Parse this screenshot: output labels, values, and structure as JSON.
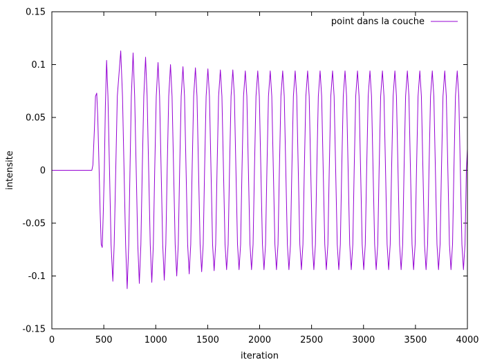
{
  "chart_data": {
    "type": "line",
    "title": "",
    "xlabel": "iteration",
    "ylabel": "intensite",
    "xlim": [
      0,
      4000
    ],
    "ylim": [
      -0.15,
      0.15
    ],
    "x_ticks": [
      {
        "value": 0,
        "label": "0"
      },
      {
        "value": 500,
        "label": "500"
      },
      {
        "value": 1000,
        "label": "1000"
      },
      {
        "value": 1500,
        "label": "1500"
      },
      {
        "value": 2000,
        "label": "2000"
      },
      {
        "value": 2500,
        "label": "2500"
      },
      {
        "value": 3000,
        "label": "3000"
      },
      {
        "value": 3500,
        "label": "3500"
      },
      {
        "value": 4000,
        "label": "4000"
      }
    ],
    "y_ticks": [
      {
        "value": 0.15,
        "label": "0.15"
      },
      {
        "value": 0.1,
        "label": "0.1"
      },
      {
        "value": 0.05,
        "label": "0.05"
      },
      {
        "value": 0,
        "label": "0"
      },
      {
        "value": -0.05,
        "label": "-0.05"
      },
      {
        "value": -0.1,
        "label": "-0.1"
      },
      {
        "value": -0.15,
        "label": "-0.15"
      }
    ],
    "grid": false,
    "legend_position": "top-right",
    "series": [
      {
        "name": "point dans la couche",
        "color": "#9400d3",
        "points": [
          [
            0,
            0
          ],
          [
            385,
            0
          ],
          [
            395,
            0.005
          ],
          [
            410,
            0.04
          ],
          [
            420,
            0.07
          ],
          [
            432,
            0.073
          ],
          [
            442,
            0.05
          ],
          [
            455,
            0.0
          ],
          [
            465,
            -0.04
          ],
          [
            475,
            -0.07
          ],
          [
            485,
            -0.073
          ],
          [
            495,
            -0.04
          ],
          [
            505,
            0.0
          ],
          [
            515,
            0.06
          ],
          [
            527,
            0.104
          ],
          [
            540,
            0.07
          ],
          [
            555,
            0.0
          ],
          [
            570,
            -0.07
          ],
          [
            587,
            -0.105
          ],
          [
            600,
            -0.07
          ],
          [
            615,
            0.0
          ],
          [
            630,
            0.07
          ],
          [
            663,
            0.113
          ],
          [
            680,
            0.07
          ],
          [
            695,
            0.0
          ],
          [
            710,
            -0.07
          ],
          [
            725,
            -0.112
          ],
          [
            740,
            -0.07
          ],
          [
            752,
            0.0
          ],
          [
            765,
            0.07
          ],
          [
            782,
            0.111
          ],
          [
            797,
            0.07
          ],
          [
            812,
            0.0
          ],
          [
            827,
            -0.07
          ],
          [
            842,
            -0.107
          ],
          [
            857,
            -0.07
          ],
          [
            870,
            0.0
          ],
          [
            885,
            0.07
          ],
          [
            902,
            0.107
          ],
          [
            917,
            0.07
          ],
          [
            932,
            0.0
          ],
          [
            947,
            -0.07
          ],
          [
            962,
            -0.106
          ],
          [
            977,
            -0.07
          ],
          [
            990,
            0.0
          ],
          [
            1005,
            0.07
          ],
          [
            1022,
            0.102
          ],
          [
            1037,
            0.07
          ],
          [
            1052,
            0.0
          ],
          [
            1067,
            -0.07
          ],
          [
            1082,
            -0.104
          ],
          [
            1097,
            -0.07
          ],
          [
            1110,
            0.0
          ],
          [
            1125,
            0.07
          ],
          [
            1142,
            0.1
          ],
          [
            1157,
            0.07
          ],
          [
            1172,
            0.0
          ],
          [
            1187,
            -0.07
          ],
          [
            1202,
            -0.1
          ],
          [
            1217,
            -0.07
          ],
          [
            1230,
            0.0
          ],
          [
            1245,
            0.07
          ],
          [
            1262,
            0.098
          ],
          [
            1277,
            0.07
          ],
          [
            1292,
            0.0
          ],
          [
            1307,
            -0.07
          ],
          [
            1322,
            -0.098
          ],
          [
            1337,
            -0.07
          ],
          [
            1350,
            0.0
          ],
          [
            1365,
            0.07
          ],
          [
            1382,
            0.097
          ],
          [
            1397,
            0.07
          ],
          [
            1412,
            0.0
          ],
          [
            1427,
            -0.07
          ],
          [
            1442,
            -0.096
          ],
          [
            1457,
            -0.07
          ],
          [
            1470,
            0.0
          ],
          [
            1485,
            0.07
          ],
          [
            1502,
            0.096
          ],
          [
            1517,
            0.07
          ],
          [
            1532,
            0.0
          ],
          [
            1547,
            -0.07
          ],
          [
            1562,
            -0.095
          ],
          [
            1577,
            -0.07
          ],
          [
            1590,
            0.0
          ],
          [
            1605,
            0.07
          ],
          [
            1622,
            0.095
          ],
          [
            1637,
            0.07
          ],
          [
            1652,
            0.0
          ],
          [
            1667,
            -0.07
          ],
          [
            1682,
            -0.094
          ],
          [
            1697,
            -0.07
          ],
          [
            1710,
            0.0
          ],
          [
            1725,
            0.07
          ],
          [
            1742,
            0.095
          ],
          [
            1757,
            0.07
          ],
          [
            1772,
            0.0
          ],
          [
            1787,
            -0.07
          ],
          [
            1802,
            -0.094
          ],
          [
            1817,
            -0.07
          ],
          [
            1830,
            0.0
          ],
          [
            1845,
            0.07
          ],
          [
            1862,
            0.094
          ],
          [
            1877,
            0.07
          ],
          [
            1892,
            0.0
          ],
          [
            1907,
            -0.07
          ],
          [
            1922,
            -0.094
          ],
          [
            1937,
            -0.07
          ],
          [
            1950,
            0.0
          ],
          [
            1965,
            0.07
          ],
          [
            1982,
            0.094
          ],
          [
            1997,
            0.07
          ],
          [
            2012,
            0.0
          ],
          [
            2027,
            -0.07
          ],
          [
            2042,
            -0.094
          ],
          [
            2057,
            -0.07
          ],
          [
            2070,
            0.0
          ],
          [
            2085,
            0.07
          ],
          [
            2102,
            0.094
          ],
          [
            2117,
            0.07
          ],
          [
            2132,
            0.0
          ],
          [
            2147,
            -0.07
          ],
          [
            2162,
            -0.094
          ],
          [
            2177,
            -0.07
          ],
          [
            2190,
            0.0
          ],
          [
            2205,
            0.07
          ],
          [
            2222,
            0.094
          ],
          [
            2237,
            0.07
          ],
          [
            2252,
            0.0
          ],
          [
            2267,
            -0.07
          ],
          [
            2282,
            -0.094
          ],
          [
            2297,
            -0.07
          ],
          [
            2310,
            0.0
          ],
          [
            2325,
            0.07
          ],
          [
            2342,
            0.094
          ],
          [
            2357,
            0.07
          ],
          [
            2372,
            0.0
          ],
          [
            2387,
            -0.07
          ],
          [
            2402,
            -0.094
          ],
          [
            2417,
            -0.07
          ],
          [
            2430,
            0.0
          ],
          [
            2445,
            0.07
          ],
          [
            2462,
            0.094
          ],
          [
            2477,
            0.07
          ],
          [
            2492,
            0.0
          ],
          [
            2507,
            -0.07
          ],
          [
            2522,
            -0.094
          ],
          [
            2537,
            -0.07
          ],
          [
            2550,
            0.0
          ],
          [
            2565,
            0.07
          ],
          [
            2582,
            0.094
          ],
          [
            2597,
            0.07
          ],
          [
            2612,
            0.0
          ],
          [
            2627,
            -0.07
          ],
          [
            2642,
            -0.094
          ],
          [
            2657,
            -0.07
          ],
          [
            2670,
            0.0
          ],
          [
            2685,
            0.07
          ],
          [
            2702,
            0.094
          ],
          [
            2717,
            0.07
          ],
          [
            2732,
            0.0
          ],
          [
            2747,
            -0.07
          ],
          [
            2762,
            -0.094
          ],
          [
            2777,
            -0.07
          ],
          [
            2790,
            0.0
          ],
          [
            2805,
            0.07
          ],
          [
            2822,
            0.094
          ],
          [
            2837,
            0.07
          ],
          [
            2852,
            0.0
          ],
          [
            2867,
            -0.07
          ],
          [
            2882,
            -0.094
          ],
          [
            2897,
            -0.07
          ],
          [
            2910,
            0.0
          ],
          [
            2925,
            0.07
          ],
          [
            2942,
            0.094
          ],
          [
            2957,
            0.07
          ],
          [
            2972,
            0.0
          ],
          [
            2987,
            -0.07
          ],
          [
            3002,
            -0.094
          ],
          [
            3017,
            -0.07
          ],
          [
            3030,
            0.0
          ],
          [
            3045,
            0.07
          ],
          [
            3062,
            0.094
          ],
          [
            3077,
            0.07
          ],
          [
            3092,
            0.0
          ],
          [
            3107,
            -0.07
          ],
          [
            3122,
            -0.094
          ],
          [
            3137,
            -0.07
          ],
          [
            3150,
            0.0
          ],
          [
            3165,
            0.07
          ],
          [
            3182,
            0.094
          ],
          [
            3197,
            0.07
          ],
          [
            3212,
            0.0
          ],
          [
            3227,
            -0.07
          ],
          [
            3242,
            -0.094
          ],
          [
            3257,
            -0.07
          ],
          [
            3270,
            0.0
          ],
          [
            3285,
            0.07
          ],
          [
            3302,
            0.094
          ],
          [
            3317,
            0.07
          ],
          [
            3332,
            0.0
          ],
          [
            3347,
            -0.07
          ],
          [
            3362,
            -0.094
          ],
          [
            3377,
            -0.07
          ],
          [
            3390,
            0.0
          ],
          [
            3405,
            0.07
          ],
          [
            3422,
            0.094
          ],
          [
            3437,
            0.07
          ],
          [
            3452,
            0.0
          ],
          [
            3467,
            -0.07
          ],
          [
            3482,
            -0.094
          ],
          [
            3497,
            -0.07
          ],
          [
            3510,
            0.0
          ],
          [
            3525,
            0.07
          ],
          [
            3542,
            0.094
          ],
          [
            3557,
            0.07
          ],
          [
            3572,
            0.0
          ],
          [
            3587,
            -0.07
          ],
          [
            3602,
            -0.094
          ],
          [
            3617,
            -0.07
          ],
          [
            3630,
            0.0
          ],
          [
            3645,
            0.07
          ],
          [
            3662,
            0.094
          ],
          [
            3677,
            0.07
          ],
          [
            3692,
            0.0
          ],
          [
            3707,
            -0.07
          ],
          [
            3722,
            -0.094
          ],
          [
            3737,
            -0.07
          ],
          [
            3750,
            0.0
          ],
          [
            3765,
            0.07
          ],
          [
            3782,
            0.094
          ],
          [
            3797,
            0.07
          ],
          [
            3812,
            0.0
          ],
          [
            3827,
            -0.07
          ],
          [
            3842,
            -0.094
          ],
          [
            3857,
            -0.07
          ],
          [
            3870,
            0.0
          ],
          [
            3885,
            0.07
          ],
          [
            3902,
            0.094
          ],
          [
            3917,
            0.07
          ],
          [
            3932,
            0.0
          ],
          [
            3947,
            -0.07
          ],
          [
            3962,
            -0.094
          ],
          [
            3977,
            -0.07
          ],
          [
            3990,
            0.0
          ],
          [
            4000,
            0.02
          ]
        ]
      }
    ]
  }
}
